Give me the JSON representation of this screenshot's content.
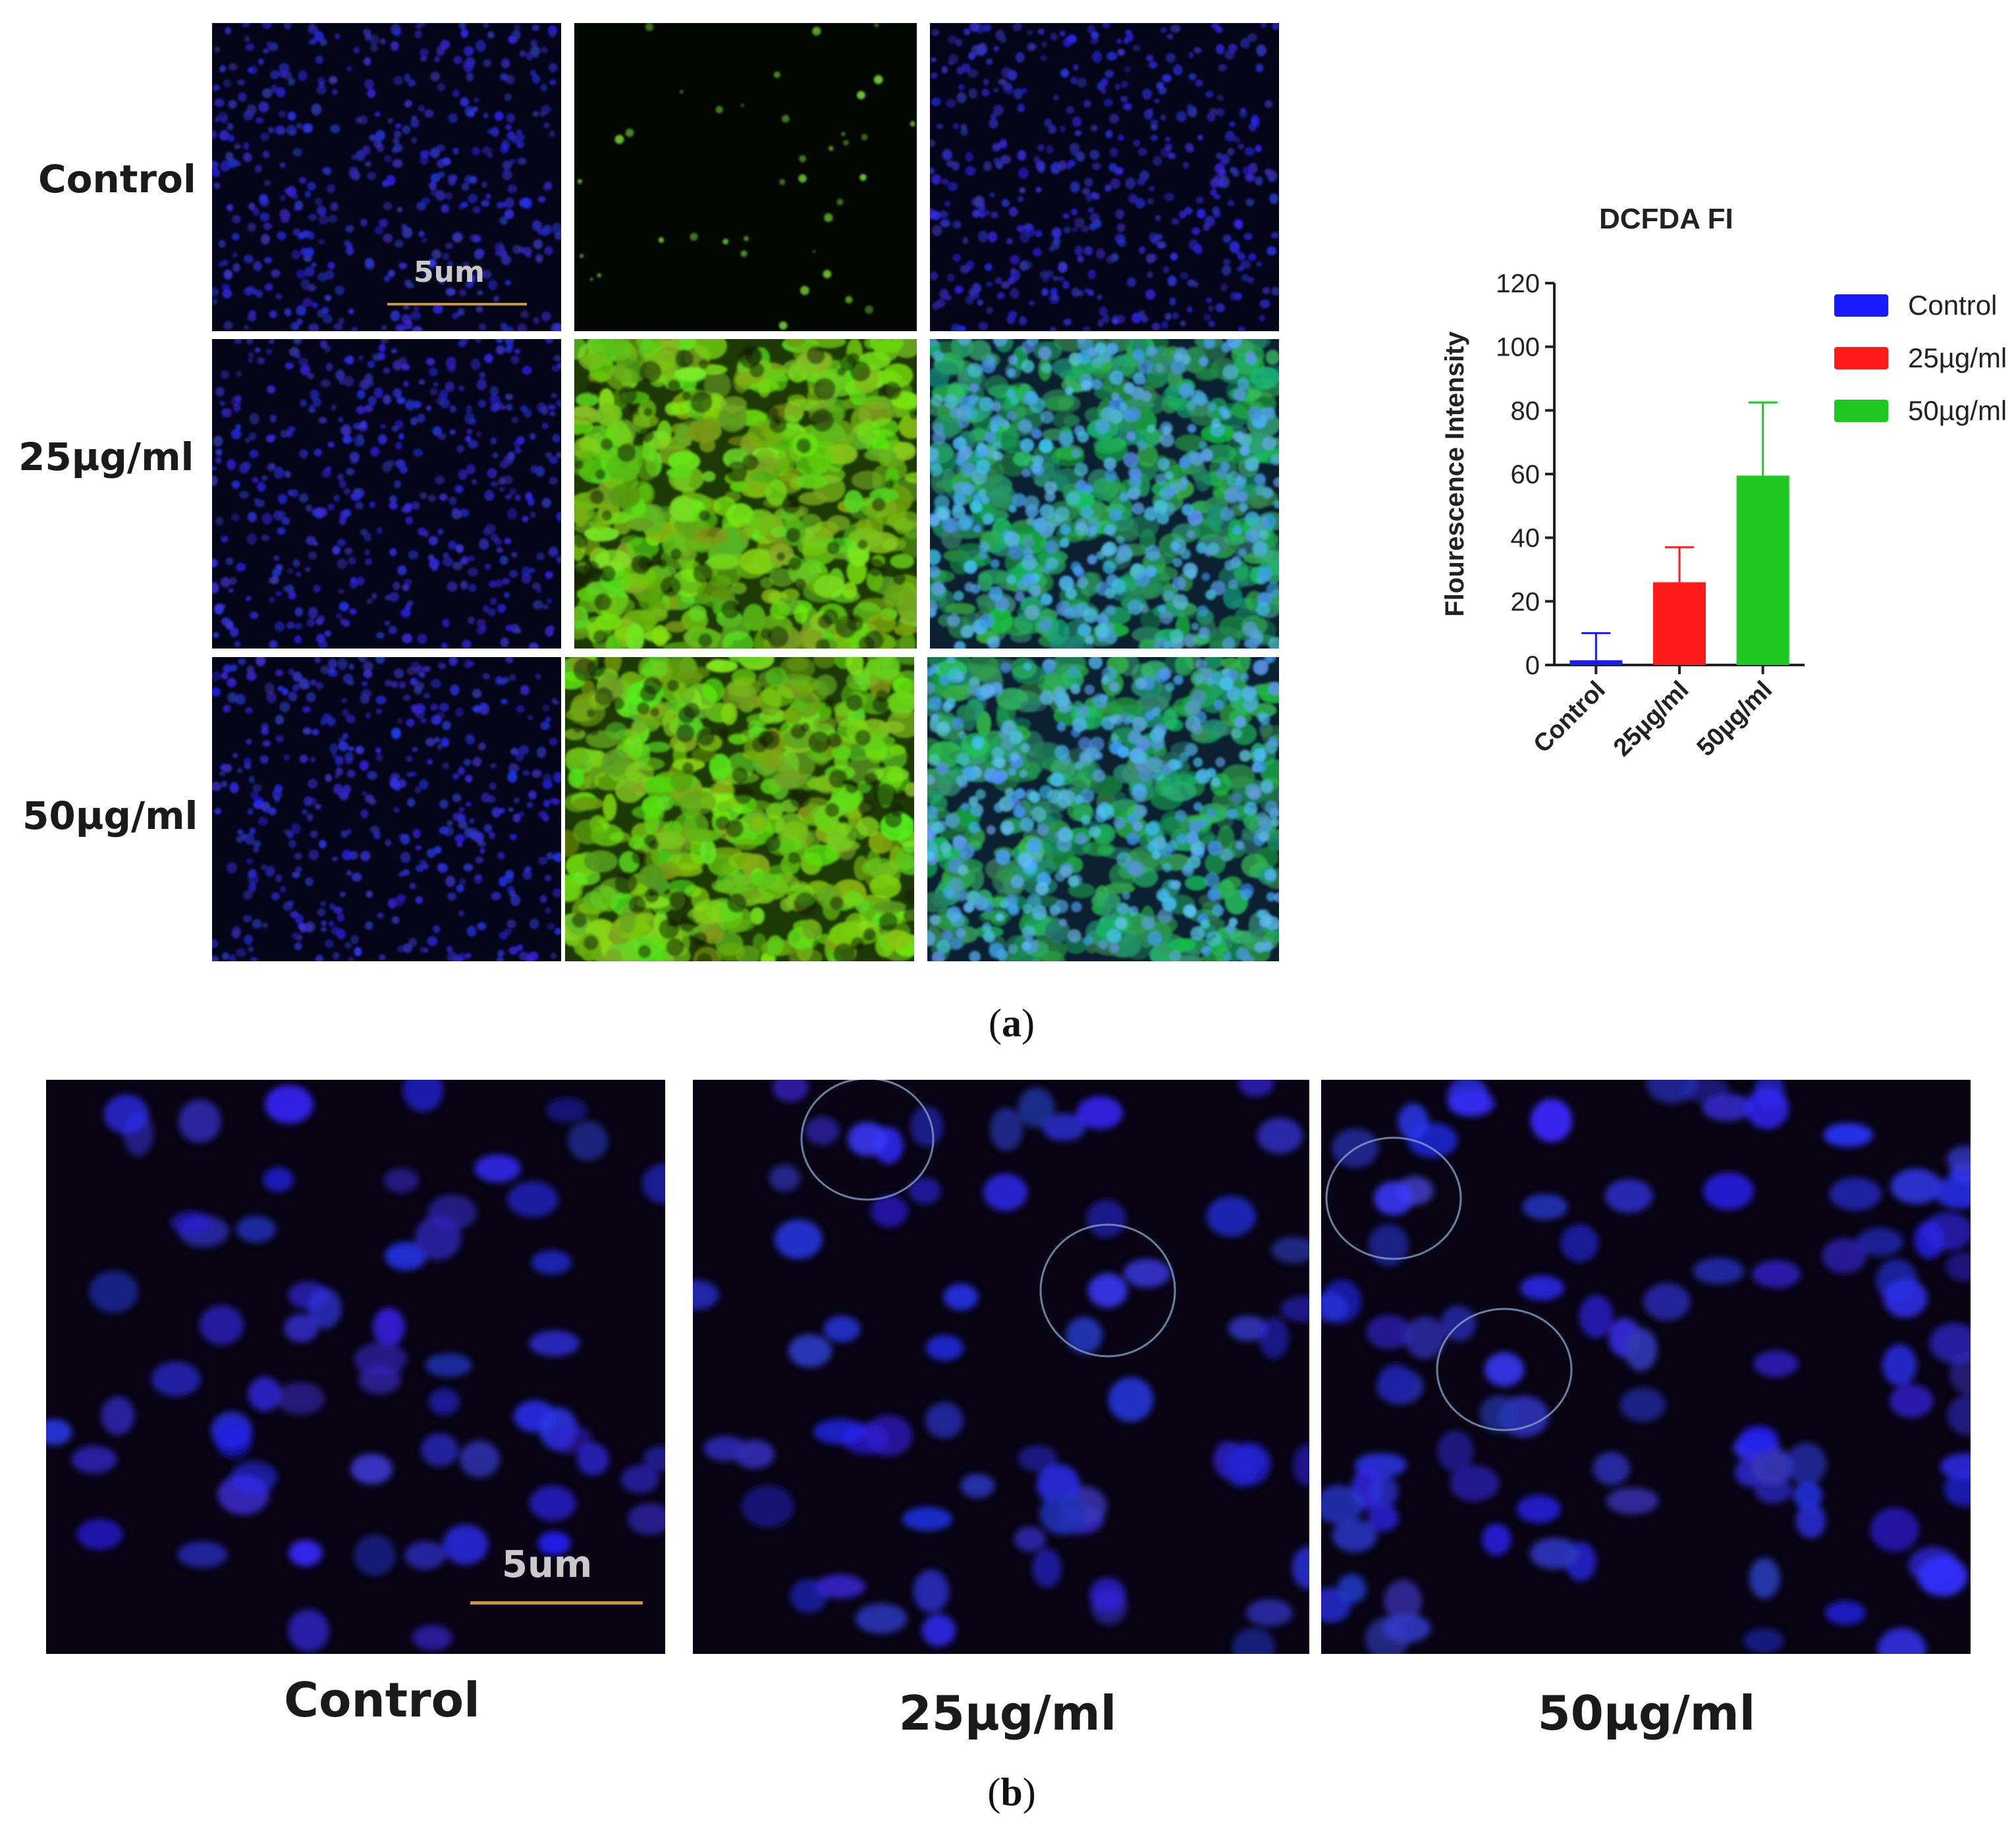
{
  "panel_a": {
    "caption": "a",
    "row_labels": [
      "Control",
      "25µg/ml",
      "50µg/ml"
    ],
    "scale_bar": "5um"
  },
  "panel_b": {
    "caption": "b",
    "labels": [
      "Control",
      "25µg/ml",
      "50µg/ml"
    ],
    "scale_bar": "5um"
  },
  "colors": {
    "control": "#1a1aff",
    "dose25": "#ff1a1a",
    "dose50": "#1ec81e",
    "dapi": "#2828d8",
    "dcfda": "#6fd21e"
  },
  "chart_data": {
    "type": "bar",
    "title": "DCFDA FI",
    "ylabel": "Flourescence Intensity",
    "xlabel": "",
    "categories": [
      "Control",
      "25µg/ml",
      "50µg/ml"
    ],
    "values": [
      1.5,
      26,
      59.5
    ],
    "error_upper": [
      10,
      37,
      82.5
    ],
    "ylim": [
      0,
      120
    ],
    "yticks": [
      "0",
      "20",
      "40",
      "60",
      "80",
      "100",
      "120"
    ],
    "legend": [
      "Control",
      "25µg/ml",
      "50µg/ml"
    ],
    "legend_position": "right",
    "grid": false
  }
}
